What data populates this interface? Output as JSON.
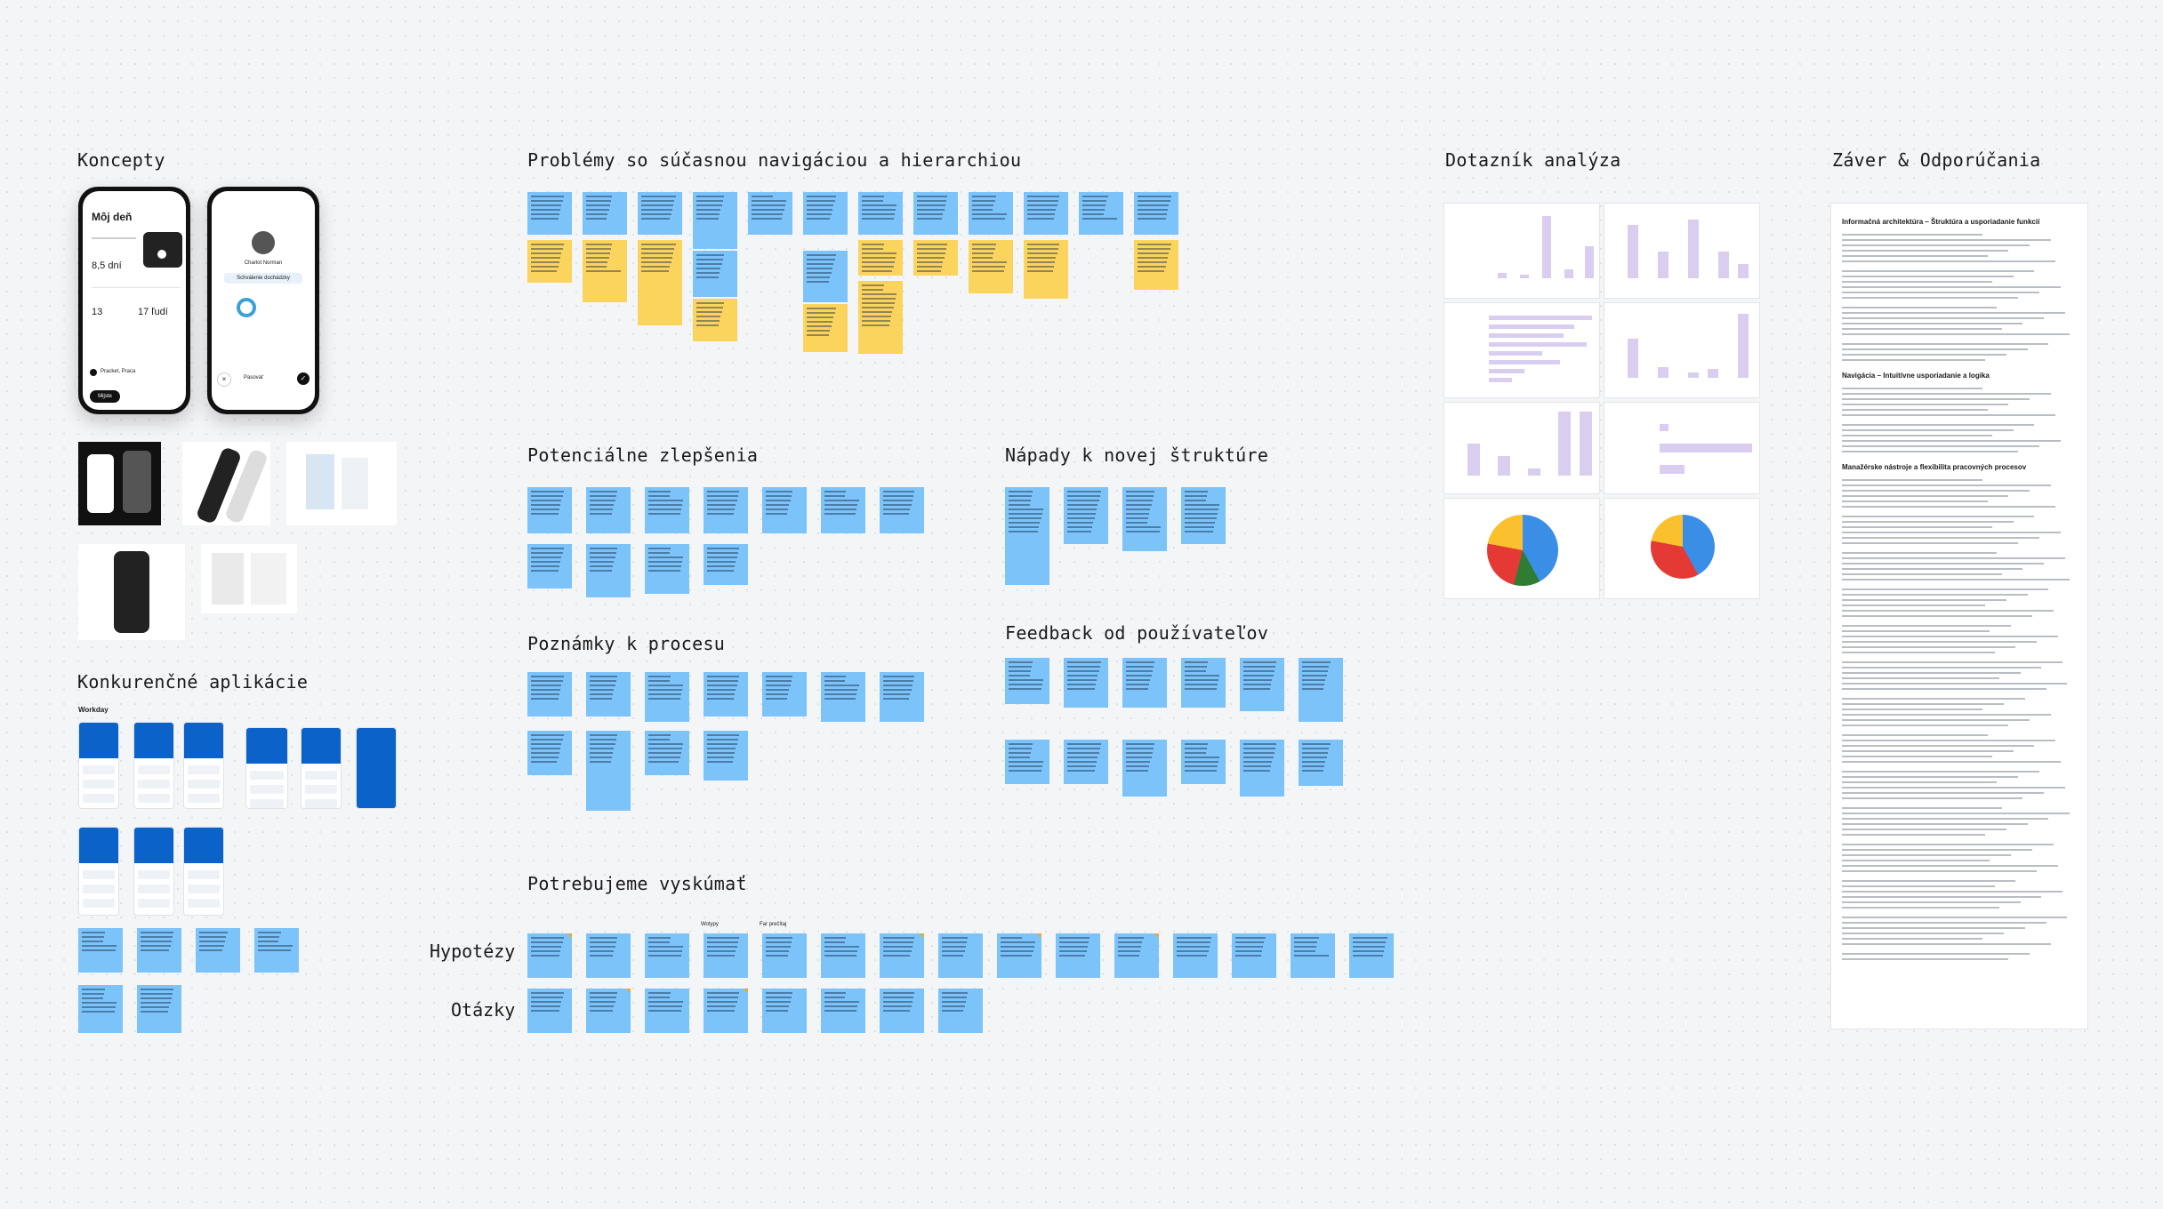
{
  "sections": {
    "concepts": "Koncepty",
    "problems": "Problémy so súčasnou navigáciou a hierarchiou",
    "survey": "Dotazník analýza",
    "conclusion": "Záver & Odporúčania",
    "improvements": "Potenciálne zlepšenia",
    "new_structure": "Nápady k novej štruktúre",
    "process_notes": "Poznámky k procesu",
    "feedback": "Feedback od používateľov",
    "competitors": "Konkurenčné aplikácie",
    "research": "Potrebujeme vyskúmať"
  },
  "competitors_label": "Workday",
  "rows": {
    "hypotheses": "Hypotézy",
    "questions": "Otázky"
  },
  "research_tags": {
    "left": "Wotypy",
    "right": "Far prečítaj"
  },
  "phone1": {
    "title": "Môj deň",
    "stat1": "8,5 dní",
    "stat2": "13",
    "stat3": "17 ľudí",
    "location": "Pracket, Praca",
    "button": "Mijste"
  },
  "phone2": {
    "name": "Charlot Norman",
    "subtitle": "Schválenie dochádzky",
    "cancel": "Pasovať"
  },
  "conclusion_doc": {
    "h1": "Informačná architektúra – Štruktúra a usporiadanie funkcií",
    "h2": "Navigácia – Intuitívne usporiadanie a logika",
    "h3": "Manažérske nástroje a flexibilita pracovných procesov"
  },
  "colors": {
    "blue_note": "#7cc3f9",
    "yellow_note": "#fbd45e",
    "bar": "#d9cdf0",
    "accent": "#3a8ee6"
  }
}
